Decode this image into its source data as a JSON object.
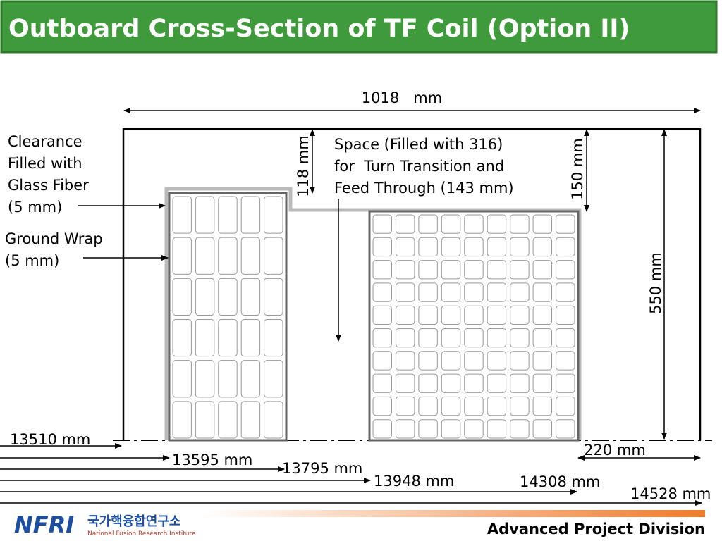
{
  "header": {
    "title": "Outboard Cross-Section of TF Coil (Option II)"
  },
  "dimensions": {
    "overall_width": "1018   mm",
    "gap_height": "118 mm",
    "step_height": "150 mm",
    "total_height": "550 mm",
    "outer_width": "220 mm"
  },
  "callouts": {
    "clearance": [
      "Clearance",
      "Filled with",
      "Glass Fiber",
      "(5 mm)"
    ],
    "ground_wrap": [
      "Ground Wrap",
      "(5 mm)"
    ],
    "space": [
      "Space (Filled with 316)",
      "for  Turn Transition and",
      "Feed Through (143 mm)"
    ]
  },
  "radii": [
    "13510 mm",
    "13595 mm",
    "13795 mm",
    "13948 mm",
    "14308 mm",
    "14528 mm"
  ],
  "footer": {
    "logo": "NFRI",
    "institute_korean": "국가핵융합연구소",
    "institute_english": "National Fusion Research Institute",
    "division": "Advanced Project Division"
  }
}
